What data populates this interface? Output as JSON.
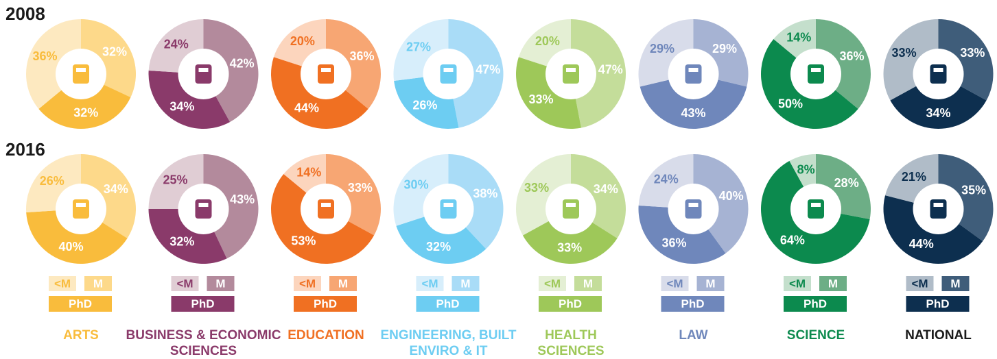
{
  "years": [
    "2008",
    "2016"
  ],
  "chart_data": [
    {
      "type": "pie",
      "title": "ARTS",
      "categories": [
        "<M",
        "M",
        "PhD"
      ],
      "colors": [
        "#fde9c0",
        "#fdd98a",
        "#f9bc3c"
      ],
      "values": [
        [
          36,
          32,
          32
        ],
        [
          26,
          34,
          40
        ]
      ],
      "value_labels": [
        [
          "36%",
          "32%",
          "32%"
        ],
        [
          "26%",
          "34%",
          "40%"
        ]
      ]
    },
    {
      "type": "pie",
      "title": "BUSINESS & ECONOMIC SCIENCES",
      "categories": [
        "<M",
        "M",
        "PhD"
      ],
      "colors": [
        "#e0cdd4",
        "#b38a9c",
        "#8a3a6a"
      ],
      "values": [
        [
          24,
          42,
          34
        ],
        [
          25,
          43,
          32
        ]
      ],
      "value_labels": [
        [
          "24%",
          "42%",
          "34%"
        ],
        [
          "25%",
          "43%",
          "32%"
        ]
      ]
    },
    {
      "type": "pie",
      "title": "EDUCATION",
      "categories": [
        "<M",
        "M",
        "PhD"
      ],
      "colors": [
        "#fcd5bd",
        "#f7a673",
        "#f07022"
      ],
      "values": [
        [
          20,
          36,
          44
        ],
        [
          14,
          33,
          53
        ]
      ],
      "value_labels": [
        [
          "20%",
          "36%",
          "44%"
        ],
        [
          "14%",
          "33%",
          "53%"
        ]
      ]
    },
    {
      "type": "pie",
      "title": "ENGINEERING, BUILT ENVIRO & IT",
      "categories": [
        "<M",
        "M",
        "PhD"
      ],
      "colors": [
        "#d7eefb",
        "#a9dcf7",
        "#6dcdf2"
      ],
      "values": [
        [
          27,
          47,
          26
        ],
        [
          30,
          38,
          32
        ]
      ],
      "value_labels": [
        [
          "27%",
          "47%",
          "26%"
        ],
        [
          "30%",
          "38%",
          "32%"
        ]
      ]
    },
    {
      "type": "pie",
      "title": "HEALTH SCIENCES",
      "categories": [
        "<M",
        "M",
        "PhD"
      ],
      "colors": [
        "#e4efd4",
        "#c4dd9a",
        "#9ec859"
      ],
      "values": [
        [
          20,
          47,
          33
        ],
        [
          33,
          34,
          33
        ]
      ],
      "value_labels": [
        [
          "20%",
          "47%",
          "33%"
        ],
        [
          "33%",
          "34%",
          "33%"
        ]
      ]
    },
    {
      "type": "pie",
      "title": "LAW",
      "categories": [
        "<M",
        "M",
        "PhD"
      ],
      "colors": [
        "#d8dcea",
        "#a6b3d3",
        "#6f87bb"
      ],
      "values": [
        [
          29,
          29,
          43
        ],
        [
          24,
          40,
          36
        ]
      ],
      "value_labels": [
        [
          "29%",
          "29%",
          "43%"
        ],
        [
          "24%",
          "40%",
          "36%"
        ]
      ]
    },
    {
      "type": "pie",
      "title": "SCIENCE",
      "categories": [
        "<M",
        "M",
        "PhD"
      ],
      "colors": [
        "#c4dfcc",
        "#6dae86",
        "#0c8a4e"
      ],
      "values": [
        [
          14,
          36,
          50
        ],
        [
          8,
          28,
          64
        ]
      ],
      "value_labels": [
        [
          "14%",
          "36%",
          "50%"
        ],
        [
          "8%",
          "28%",
          "64%"
        ]
      ]
    },
    {
      "type": "pie",
      "title": "NATIONAL",
      "categories": [
        "<M",
        "M",
        "PhD"
      ],
      "colors": [
        "#b0bcc8",
        "#3f5d7a",
        "#0d2f4f"
      ],
      "values": [
        [
          33,
          33,
          34
        ],
        [
          21,
          35,
          44
        ]
      ],
      "value_labels": [
        [
          "33%",
          "33%",
          "34%"
        ],
        [
          "21%",
          "35%",
          "44%"
        ]
      ]
    }
  ]
}
